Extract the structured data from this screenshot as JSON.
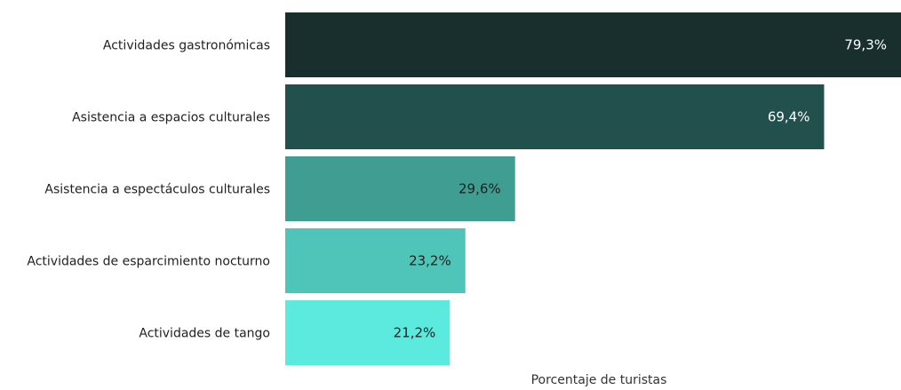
{
  "chart_data": {
    "type": "bar",
    "orientation": "horizontal",
    "categories": [
      "Actividades gastronómicas",
      "Asistencia a espacios culturales",
      "Asistencia a espectáculos culturales",
      "Actividades de esparcimiento nocturno",
      "Actividades de tango"
    ],
    "values": [
      79.3,
      69.4,
      29.6,
      23.2,
      21.2
    ],
    "value_labels": [
      "79,3%",
      "69,4%",
      "29,6%",
      "23,2%",
      "21,2%"
    ],
    "colors": [
      "#182f2e",
      "#22514d",
      "#3f9d92",
      "#4fc4b8",
      "#5ce9de"
    ],
    "label_colors": [
      "#ffffff",
      "#ffffff",
      "#1f1f1f",
      "#1f1f1f",
      "#1f1f1f"
    ],
    "xlabel": "Porcentaje de turistas",
    "xlim": [
      0,
      79.3
    ],
    "grid": false
  }
}
